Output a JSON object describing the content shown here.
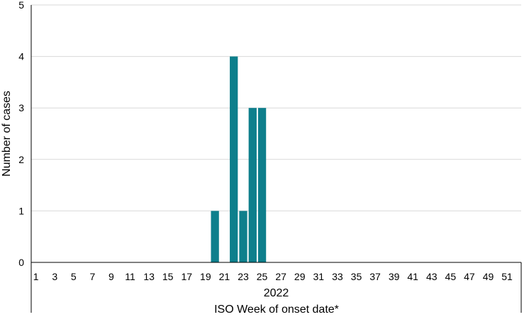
{
  "chart_data": {
    "type": "bar",
    "title": "",
    "xlabel": "ISO Week of onset date*",
    "ylabel": "Number of cases",
    "group_label": "2022",
    "x_range": [
      1,
      52
    ],
    "x_tick_labels": [
      "1",
      "3",
      "5",
      "7",
      "9",
      "11",
      "13",
      "15",
      "17",
      "19",
      "21",
      "23",
      "25",
      "27",
      "29",
      "31",
      "33",
      "35",
      "37",
      "39",
      "41",
      "43",
      "45",
      "47",
      "49",
      "51"
    ],
    "ylim": [
      0,
      5
    ],
    "y_ticks": [
      0,
      1,
      2,
      3,
      4,
      5
    ],
    "grid": "horizontal",
    "bar_color": "#0e7f8c",
    "bars": [
      {
        "week": 20,
        "value": 1
      },
      {
        "week": 22,
        "value": 4
      },
      {
        "week": 23,
        "value": 1
      },
      {
        "week": 24,
        "value": 3
      },
      {
        "week": 25,
        "value": 3
      }
    ]
  }
}
